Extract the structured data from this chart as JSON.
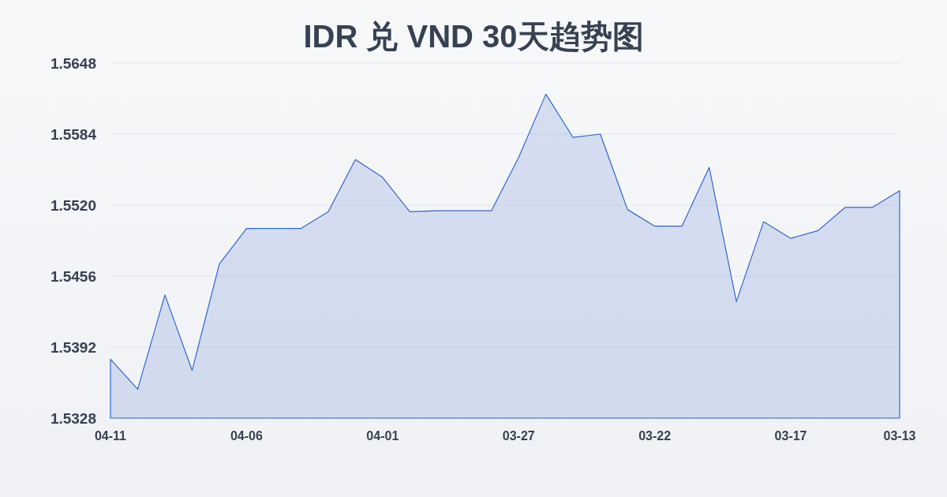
{
  "chart_data": {
    "type": "area",
    "title": "IDR 兑 VND 30天趋势图",
    "categories": [
      "04-11",
      null,
      null,
      null,
      null,
      "04-06",
      null,
      null,
      null,
      null,
      "04-01",
      null,
      null,
      null,
      null,
      "03-27",
      null,
      null,
      null,
      null,
      "03-22",
      null,
      null,
      null,
      null,
      "03-17",
      null,
      null,
      null,
      "03-13"
    ],
    "series": [
      {
        "color": "#3366cc",
        "values": [
          1.5381,
          1.5354,
          1.5439,
          1.5371,
          1.5467,
          1.5499,
          1.5499,
          1.5499,
          1.5514,
          1.5561,
          1.5545,
          1.5514,
          1.5515,
          1.5515,
          1.5515,
          1.5563,
          1.562,
          1.5581,
          1.5584,
          1.5516,
          1.5501,
          1.5501,
          1.5554,
          1.5433,
          1.5505,
          1.549,
          1.5497,
          1.5518,
          1.5518,
          1.5533
        ]
      }
    ],
    "ylim": [
      1.5328,
      1.5648
    ],
    "yticks": [
      1.5328,
      1.5392,
      1.5456,
      {
        "value": 1.552,
        "label": "1.5520"
      },
      1.5584,
      1.5648
    ],
    "grid": "y"
  }
}
